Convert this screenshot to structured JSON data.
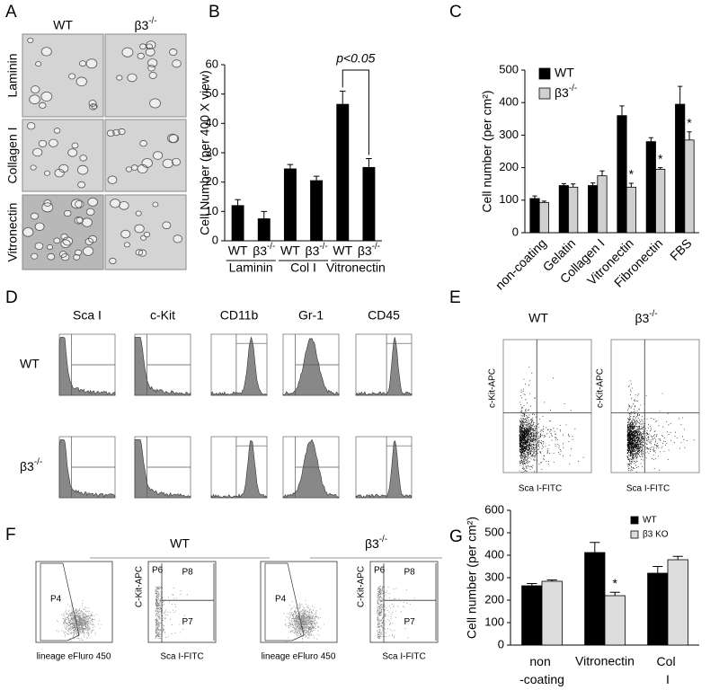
{
  "panel_labels": [
    "A",
    "B",
    "C",
    "D",
    "E",
    "F",
    "G"
  ],
  "panel_a": {
    "columns": [
      "WT",
      "β3-/-"
    ],
    "rows": [
      "Laminin",
      "Collagen I",
      "Vitronectin"
    ]
  },
  "panel_d": {
    "columns": [
      "Sca I",
      "c-Kit",
      "CD11b",
      "Gr-1",
      "CD45"
    ],
    "rows": [
      "WT",
      "β3-/-"
    ]
  },
  "panel_e": {
    "columns": [
      "WT",
      "β3-/-"
    ],
    "y_label": "c-Kit-APC",
    "x_label": "Sca I-FITC"
  },
  "panel_f": {
    "groups": [
      "WT",
      "β3-/-"
    ],
    "lineage_label": "lineage eFluro 450",
    "kit_label": "C-Kit-APC",
    "sca_label": "Sca I-FITC",
    "gates": [
      "P4",
      "P6",
      "P8",
      "P7"
    ]
  },
  "chart_data": [
    {
      "type": "bar",
      "y_label": "Cell Number (per 400 X view)",
      "categories": [
        "WT",
        "β3-/-",
        "WT",
        "β3-/-",
        "WT",
        "β3-/-"
      ],
      "groups": [
        "Laminin",
        "Col I",
        "Vitronectin"
      ],
      "values": [
        12,
        7.5,
        24.5,
        20.5,
        46.5,
        25
      ],
      "errors": [
        2,
        2.5,
        1.5,
        1.5,
        4.5,
        3
      ],
      "color": "#000000",
      "ylim": [
        0,
        60
      ],
      "yticks": [
        0,
        10,
        20,
        30,
        40,
        50,
        60
      ],
      "annotations": [
        {
          "text": "p<0.05"
        }
      ]
    },
    {
      "type": "bar",
      "y_label": "Cell number (per cm²)",
      "categories": [
        "non-coating",
        "Gelatin",
        "Collagen I",
        "Vitronectin",
        "Fibronectin",
        "FBS"
      ],
      "series": [
        {
          "name": "WT",
          "color": "#000000",
          "values": [
            105,
            145,
            145,
            360,
            280,
            395
          ],
          "errors": [
            8,
            6,
            8,
            30,
            12,
            55
          ]
        },
        {
          "name": "β3-/-",
          "color": "#d0d0d0",
          "values": [
            93,
            140,
            175,
            140,
            195,
            285
          ],
          "errors": [
            4,
            10,
            15,
            12,
            5,
            25
          ]
        }
      ],
      "ylim": [
        0,
        500
      ],
      "yticks": [
        0,
        100,
        200,
        300,
        400,
        500
      ],
      "legend": "upper left",
      "annotations": [
        {
          "text": "*",
          "category": "Vitronectin"
        },
        {
          "text": "*",
          "category": "Fibronectin"
        },
        {
          "text": "*",
          "category": "FBS"
        }
      ]
    },
    {
      "type": "bar",
      "y_label": "Cell number (per cm²)",
      "categories": [
        "non -coating",
        "Vitronectin",
        "Col I"
      ],
      "series": [
        {
          "name": "WT",
          "color": "#000000",
          "values": [
            264,
            412,
            320
          ],
          "errors": [
            10,
            45,
            30
          ]
        },
        {
          "name": "β3 KO",
          "color": "#dddddd",
          "values": [
            284,
            220,
            380
          ],
          "errors": [
            6,
            15,
            15
          ]
        }
      ],
      "ylim": [
        0,
        600
      ],
      "yticks": [
        0,
        100,
        200,
        300,
        400,
        500,
        600
      ],
      "legend": "upper right",
      "annotations": [
        {
          "text": "*",
          "category": "Vitronectin"
        }
      ]
    }
  ]
}
